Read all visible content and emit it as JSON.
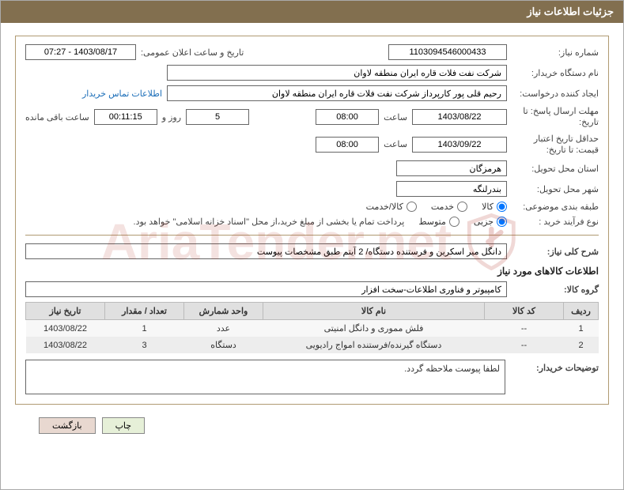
{
  "titlebar": "جزئیات اطلاعات نیاز",
  "labels": {
    "need_number": "شماره نیاز:",
    "announce_datetime": "تاریخ و ساعت اعلان عمومی:",
    "buyer_org": "نام دستگاه خریدار:",
    "requester": "ایجاد کننده درخواست:",
    "contact_link": "اطلاعات تماس خریدار",
    "deadline_send": "مهلت ارسال پاسخ:   تا تاریخ:",
    "hour": "ساعت",
    "days_and": "روز و",
    "remaining": "ساعت باقی مانده",
    "min_validity": "حداقل تاریخ اعتبار قیمت:  تا تاریخ:",
    "province": "استان محل تحویل:",
    "city": "شهر محل تحویل:",
    "category": "طبقه بندی موضوعی:",
    "purchase_type": "نوع فرآیند خرید :",
    "payment_note": "پرداخت تمام یا بخشی از مبلغ خرید،از محل \"اسناد خزانه اسلامی\" خواهد بود.",
    "need_summary": "شرح کلی نیاز:",
    "goods_info": "اطلاعات کالاهای مورد نیاز",
    "goods_group": "گروه کالا:",
    "buyer_notes": "توضیحات خریدار:"
  },
  "values": {
    "need_number": "1103094546000433",
    "announce_datetime": "1403/08/17 - 07:27",
    "buyer_org": "شرکت نفت فلات قاره ایران منطقه لاوان",
    "requester": "رحیم قلی پور کارپرداز شرکت نفت فلات قاره ایران منطقه لاوان",
    "deadline_date": "1403/08/22",
    "deadline_hour": "08:00",
    "deadline_days": "5",
    "deadline_remain": "00:11:15",
    "validity_date": "1403/09/22",
    "validity_hour": "08:00",
    "province": "هرمزگان",
    "city": "بندرلنگه",
    "summary": "دانگل میر اسکرین و فرستنده دستگاه/ 2 آیتم طبق مشخصات پیوست",
    "goods_group": "کامپیوتر و فناوری اطلاعات-سخت افزار",
    "buyer_notes": "لطفا پیوست ملاحظه گردد."
  },
  "radios": {
    "category": [
      "کالا",
      "خدمت",
      "کالا/خدمت"
    ],
    "category_checked": 0,
    "purchase": [
      "جزیی",
      "متوسط"
    ],
    "purchase_checked": 0
  },
  "table": {
    "headers": [
      "ردیف",
      "کد کالا",
      "نام کالا",
      "واحد شمارش",
      "تعداد / مقدار",
      "تاریخ نیاز"
    ],
    "rows": [
      {
        "idx": "1",
        "code": "--",
        "name": "فلش مموری و دانگل امنیتی",
        "unit": "عدد",
        "qty": "1",
        "date": "1403/08/22"
      },
      {
        "idx": "2",
        "code": "--",
        "name": "دستگاه گیرنده/فرستنده امواج رادیویی",
        "unit": "دستگاه",
        "qty": "3",
        "date": "1403/08/22"
      }
    ]
  },
  "buttons": {
    "print": "چاپ",
    "back": "بازگشت"
  },
  "watermark": "AriaTender.net"
}
